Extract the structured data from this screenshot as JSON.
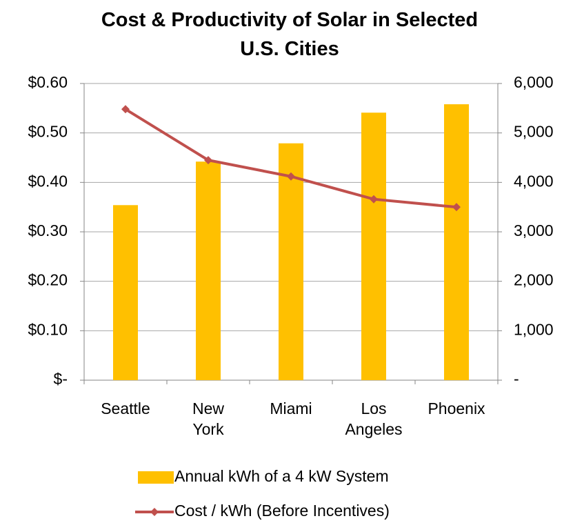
{
  "chart_data": {
    "type": "bar_line",
    "title": "Cost & Productivity of Solar in Selected U.S. Cities",
    "categories": [
      "Seattle",
      "New York",
      "Miami",
      "Los Angeles",
      "Phoenix"
    ],
    "series": [
      {
        "name": "Annual kWh of a 4 kW System",
        "type": "bar",
        "color": "#ffc000",
        "axis": "y2",
        "values": [
          3540,
          4420,
          4790,
          5410,
          5580
        ]
      },
      {
        "name": "Cost / kWh (Before Incentives)",
        "type": "line",
        "color": "#c0504d",
        "values": [
          0.548,
          0.445,
          0.412,
          0.366,
          0.35
        ]
      }
    ],
    "ylim": [
      0,
      0.6
    ],
    "yticks": [
      {
        "value": 0,
        "label": "$-"
      },
      {
        "value": 0.1,
        "label": "$0.10"
      },
      {
        "value": 0.2,
        "label": "$0.20"
      },
      {
        "value": 0.3,
        "label": "$0.30"
      },
      {
        "value": 0.4,
        "label": "$0.40"
      },
      {
        "value": 0.5,
        "label": "$0.50"
      },
      {
        "value": 0.6,
        "label": "$0.60"
      }
    ],
    "y2lim": [
      0,
      6000
    ],
    "y2ticks": [
      {
        "value": 0,
        "label": "-"
      },
      {
        "value": 1000,
        "label": "1,000"
      },
      {
        "value": 2000,
        "label": "2,000"
      },
      {
        "value": 3000,
        "label": "3,000"
      },
      {
        "value": 4000,
        "label": "4,000"
      },
      {
        "value": 5000,
        "label": "5,000"
      },
      {
        "value": 6000,
        "label": "6,000"
      }
    ],
    "grid": true,
    "legend": "bottom"
  }
}
